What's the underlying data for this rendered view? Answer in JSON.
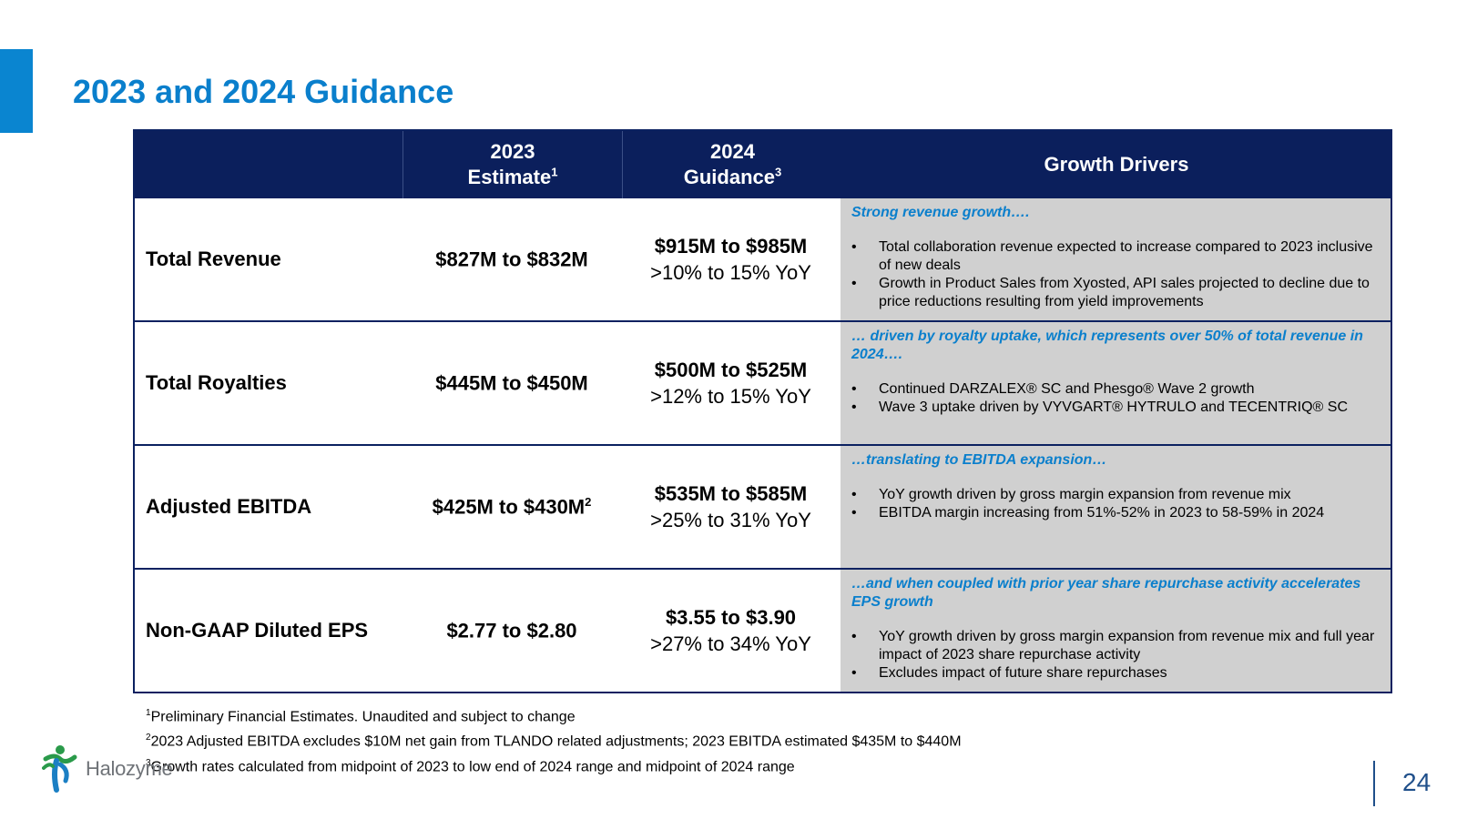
{
  "slide": {
    "title": "2023 and 2024 Guidance",
    "page_number": "24",
    "accent_color": "#0a85d0",
    "header_color": "#0b1f5c"
  },
  "table": {
    "headers": {
      "estimate_line1": "2023",
      "estimate_line2": "Estimate",
      "estimate_sup": "1",
      "guidance_line1": "2024",
      "guidance_line2": "Guidance",
      "guidance_sup": "3",
      "drivers": "Growth Drivers"
    },
    "rows": [
      {
        "metric": "Total Revenue",
        "estimate": "$827M to $832M",
        "estimate_sup": "",
        "guidance_range": "$915M to $985M",
        "guidance_growth": ">10% to 15% YoY",
        "driver_heading": "Strong revenue growth….",
        "bullets": [
          "Total collaboration revenue expected to increase compared to 2023 inclusive of new deals",
          "Growth in Product Sales from Xyosted, API sales projected to decline due to price reductions resulting from yield improvements"
        ]
      },
      {
        "metric": "Total Royalties",
        "estimate": "$445M to $450M",
        "estimate_sup": "",
        "guidance_range": "$500M to $525M",
        "guidance_growth": ">12% to 15% YoY",
        "driver_heading": "… driven by royalty uptake, which represents over 50% of total revenue in 2024….",
        "bullets": [
          "Continued DARZALEX® SC and Phesgo® Wave 2 growth",
          "Wave 3 uptake driven by VYVGART® HYTRULO and TECENTRIQ® SC"
        ]
      },
      {
        "metric": "Adjusted EBITDA",
        "estimate": "$425M to $430M",
        "estimate_sup": "2",
        "guidance_range": "$535M to $585M",
        "guidance_growth": ">25% to 31% YoY",
        "driver_heading": "…translating to EBITDA expansion…",
        "bullets": [
          "YoY growth driven by gross margin expansion from revenue mix",
          "EBITDA margin increasing from 51%-52% in 2023 to 58-59% in 2024"
        ]
      },
      {
        "metric": "Non-GAAP Diluted EPS",
        "estimate": "$2.77 to $2.80",
        "estimate_sup": "",
        "guidance_range": "$3.55 to $3.90",
        "guidance_growth": ">27% to 34% YoY",
        "driver_heading": "…and when coupled with prior year share repurchase activity accelerates EPS growth",
        "bullets": [
          "YoY growth driven by gross margin expansion from revenue mix and full year impact of 2023 share repurchase activity",
          "Excludes impact of future share repurchases"
        ]
      }
    ]
  },
  "footnotes": [
    {
      "sup": "1",
      "text": "Preliminary Financial Estimates. Unaudited and subject to change"
    },
    {
      "sup": "2",
      "text": "2023 Adjusted EBITDA excludes $10M net gain from TLANDO related adjustments; 2023 EBITDA estimated $435M to $440M"
    },
    {
      "sup": "3",
      "text": "Growth rates calculated from midpoint of 2023 to low end of 2024 range and midpoint of 2024 range"
    }
  ],
  "logo": {
    "text": "Halozyme",
    "icon": "halozyme-figure-icon"
  }
}
